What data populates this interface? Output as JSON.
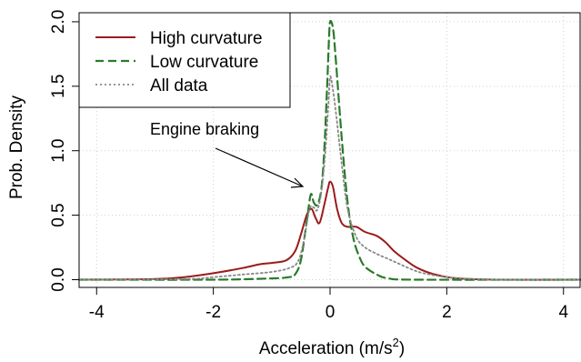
{
  "chart_data": {
    "type": "line",
    "xlabel": "Acceleration (m/s²)",
    "ylabel": "Prob. Density",
    "xlim": [
      -4.3,
      4.3
    ],
    "ylim": [
      -0.06,
      2.07
    ],
    "grid": true,
    "legend_position": "top-left",
    "x_ticks": [
      -4,
      -2,
      0,
      2,
      4
    ],
    "x_tick_labels": [
      "-4",
      "-2",
      "0",
      "2",
      "4"
    ],
    "y_ticks": [
      0.0,
      0.5,
      1.0,
      1.5,
      2.0
    ],
    "y_tick_labels": [
      "0.0",
      "0.5",
      "1.0",
      "1.5",
      "2.0"
    ],
    "annotation": {
      "text": "Engine braking",
      "target": [
        -0.3,
        0.67
      ]
    },
    "series": [
      {
        "name": "High curvature",
        "color": "#9b1b1b",
        "dash": "solid",
        "points": [
          [
            -4.3,
            0.0
          ],
          [
            -3.0,
            0.005
          ],
          [
            -2.5,
            0.02
          ],
          [
            -2.0,
            0.05
          ],
          [
            -1.5,
            0.09
          ],
          [
            -1.2,
            0.12
          ],
          [
            -1.0,
            0.13
          ],
          [
            -0.75,
            0.15
          ],
          [
            -0.6,
            0.22
          ],
          [
            -0.5,
            0.35
          ],
          [
            -0.4,
            0.5
          ],
          [
            -0.32,
            0.55
          ],
          [
            -0.25,
            0.48
          ],
          [
            -0.18,
            0.44
          ],
          [
            -0.1,
            0.58
          ],
          [
            -0.03,
            0.72
          ],
          [
            0.0,
            0.76
          ],
          [
            0.05,
            0.72
          ],
          [
            0.12,
            0.55
          ],
          [
            0.2,
            0.44
          ],
          [
            0.3,
            0.41
          ],
          [
            0.45,
            0.41
          ],
          [
            0.6,
            0.37
          ],
          [
            0.8,
            0.34
          ],
          [
            0.95,
            0.29
          ],
          [
            1.1,
            0.22
          ],
          [
            1.3,
            0.15
          ],
          [
            1.5,
            0.09
          ],
          [
            1.8,
            0.04
          ],
          [
            2.2,
            0.01
          ],
          [
            3.0,
            0.0
          ],
          [
            4.3,
            0.0
          ]
        ]
      },
      {
        "name": "Low curvature",
        "color": "#2a7a2a",
        "dash": "dashed",
        "points": [
          [
            -4.3,
            0.0
          ],
          [
            -2.0,
            0.0
          ],
          [
            -1.0,
            0.01
          ],
          [
            -0.7,
            0.02
          ],
          [
            -0.6,
            0.04
          ],
          [
            -0.5,
            0.15
          ],
          [
            -0.4,
            0.45
          ],
          [
            -0.33,
            0.66
          ],
          [
            -0.28,
            0.6
          ],
          [
            -0.22,
            0.58
          ],
          [
            -0.15,
            0.7
          ],
          [
            -0.1,
            1.0
          ],
          [
            -0.05,
            1.5
          ],
          [
            -0.02,
            1.85
          ],
          [
            0.0,
            2.0
          ],
          [
            0.05,
            1.95
          ],
          [
            0.1,
            1.7
          ],
          [
            0.2,
            1.1
          ],
          [
            0.3,
            0.6
          ],
          [
            0.4,
            0.32
          ],
          [
            0.5,
            0.18
          ],
          [
            0.6,
            0.1
          ],
          [
            0.8,
            0.04
          ],
          [
            1.0,
            0.01
          ],
          [
            1.5,
            0.0
          ],
          [
            4.3,
            0.0
          ]
        ]
      },
      {
        "name": "All data",
        "color": "#888888",
        "dash": "dotted",
        "points": [
          [
            -4.3,
            0.0
          ],
          [
            -2.5,
            0.005
          ],
          [
            -2.0,
            0.02
          ],
          [
            -1.5,
            0.04
          ],
          [
            -1.0,
            0.06
          ],
          [
            -0.7,
            0.09
          ],
          [
            -0.55,
            0.14
          ],
          [
            -0.45,
            0.3
          ],
          [
            -0.35,
            0.55
          ],
          [
            -0.28,
            0.56
          ],
          [
            -0.22,
            0.54
          ],
          [
            -0.15,
            0.68
          ],
          [
            -0.08,
            1.0
          ],
          [
            -0.03,
            1.35
          ],
          [
            0.0,
            1.57
          ],
          [
            0.04,
            1.5
          ],
          [
            0.1,
            1.3
          ],
          [
            0.2,
            0.9
          ],
          [
            0.3,
            0.55
          ],
          [
            0.45,
            0.33
          ],
          [
            0.6,
            0.25
          ],
          [
            0.8,
            0.2
          ],
          [
            1.0,
            0.16
          ],
          [
            1.2,
            0.12
          ],
          [
            1.4,
            0.08
          ],
          [
            1.6,
            0.05
          ],
          [
            2.0,
            0.02
          ],
          [
            2.5,
            0.005
          ],
          [
            3.0,
            0.0
          ],
          [
            4.3,
            0.0
          ]
        ]
      }
    ]
  }
}
